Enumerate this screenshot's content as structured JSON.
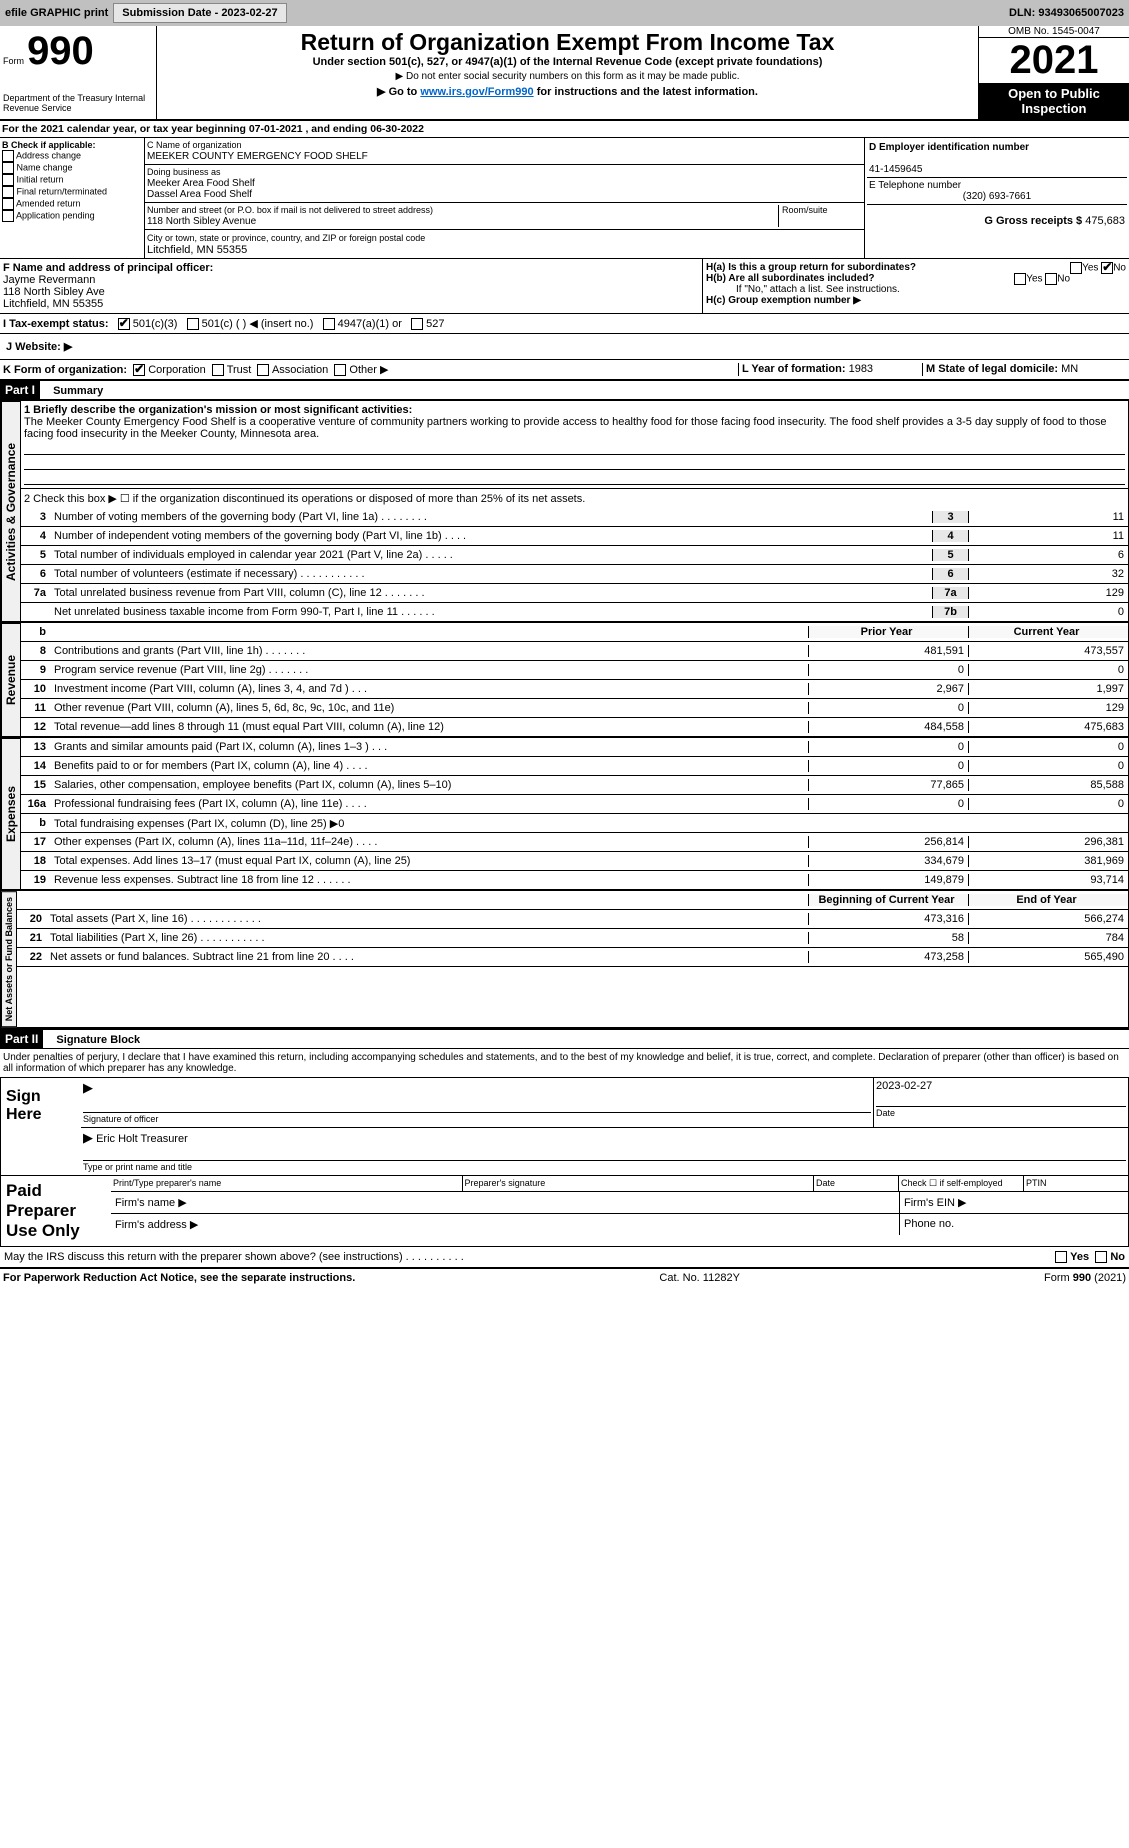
{
  "header_bar": {
    "efile_label": "efile GRAPHIC print",
    "submission_btn": "Submission Date - 2023-02-27",
    "dln": "DLN: 93493065007023"
  },
  "form_header": {
    "form_label": "Form",
    "form_no": "990",
    "title": "Return of Organization Exempt From Income Tax",
    "subtitle": "Under section 501(c), 527, or 4947(a)(1) of the Internal Revenue Code (except private foundations)",
    "note1": "▶ Do not enter social security numbers on this form as it may be made public.",
    "note2": "▶ Go to www.irs.gov/Form990 for instructions and the latest information.",
    "omb": "OMB No. 1545-0047",
    "year": "2021",
    "open": "Open to Public Inspection",
    "dept": "Department of the Treasury Internal Revenue Service"
  },
  "line_A": "For the 2021 calendar year, or tax year beginning 07-01-2021     , and ending 06-30-2022",
  "box_B": {
    "label": "B Check if applicable:",
    "opts": [
      "Address change",
      "Name change",
      "Initial return",
      "Final return/terminated",
      "Amended return",
      "Application pending"
    ]
  },
  "box_C": {
    "name_label": "C Name of organization",
    "name": "MEEKER COUNTY EMERGENCY FOOD SHELF",
    "dba_label": "Doing business as",
    "dba1": "Meeker Area Food Shelf",
    "dba2": "Dassel Area Food Shelf",
    "street_label": "Number and street (or P.O. box if mail is not delivered to street address)",
    "room_label": "Room/suite",
    "street": "118 North Sibley Avenue",
    "city_label": "City or town, state or province, country, and ZIP or foreign postal code",
    "city": "Litchfield, MN  55355"
  },
  "box_D": {
    "label": "D Employer identification number",
    "ein": "41-1459645"
  },
  "box_E": {
    "label": "E Telephone number",
    "tel": "(320) 693-7661"
  },
  "box_G": {
    "label": "G Gross receipts $",
    "val": "475,683"
  },
  "box_F": {
    "label": "F  Name and address of principal officer:",
    "name": "Jayme Revermann",
    "addr1": "118 North Sibley Ave",
    "addr2": "Litchfield, MN  55355"
  },
  "box_H": {
    "ha": "H(a)  Is this a group return for subordinates?",
    "hb": "H(b)  Are all subordinates included?",
    "hb_note": "If \"No,\" attach a list. See instructions.",
    "hc": "H(c)  Group exemption number ▶",
    "yes": "Yes",
    "no": "No"
  },
  "box_I": {
    "label": "I  Tax-exempt status:",
    "a": "501(c)(3)",
    "b": "501(c) (  ) ◀ (insert no.)",
    "c": "4947(a)(1) or",
    "d": "527"
  },
  "box_J": {
    "label": "J  Website: ▶"
  },
  "box_K": {
    "label": "K Form of organization:",
    "a": "Corporation",
    "b": "Trust",
    "c": "Association",
    "d": "Other ▶"
  },
  "box_L": {
    "label": "L Year of formation:",
    "val": "1983"
  },
  "box_M": {
    "label": "M State of legal domicile:",
    "val": "MN"
  },
  "part1": {
    "title": "Part I",
    "label": "Summary",
    "q1_label": "1  Briefly describe the organization's mission or most significant activities:",
    "q1": "The Meeker County Emergency Food Shelf is a cooperative venture of community partners working to provide access to healthy food for those facing food insecurity. The food shelf provides a 3-5 day supply of food to those facing food insecurity in the Meeker County, Minnesota area.",
    "q2": "2   Check this box ▶ ☐  if the organization discontinued its operations or disposed of more than 25% of its net assets.",
    "gov_lines": [
      {
        "n": "3",
        "t": "Number of voting members of the governing body (Part VI, line 1a)   .     .     .     .     .     .     .     .",
        "k": "3",
        "v": "11"
      },
      {
        "n": "4",
        "t": "Number of independent voting members of the governing body (Part VI, line 1b)  .     .     .     .",
        "k": "4",
        "v": "11"
      },
      {
        "n": "5",
        "t": "Total number of individuals employed in calendar year 2021 (Part V, line 2a)  .     .     .     .     .",
        "k": "5",
        "v": "6"
      },
      {
        "n": "6",
        "t": "Total number of volunteers (estimate if necessary)   .     .     .     .     .     .     .     .     .     .     .",
        "k": "6",
        "v": "32"
      },
      {
        "n": "7a",
        "t": "Total unrelated business revenue from Part VIII, column (C), line 12   .     .     .     .     .     .     .",
        "k": "7a",
        "v": "129"
      },
      {
        "n": "",
        "t": "Net unrelated business taxable income from Form 990-T, Part I, line 11   .     .     .     .     .     .",
        "k": "7b",
        "v": "0"
      }
    ],
    "py": "Prior Year",
    "cy": "Current Year",
    "rev_label": "Revenue",
    "exp_label": "Expenses",
    "na_label": "Net Assets or Fund Balances",
    "ag_label": "Activities & Governance",
    "rev": [
      {
        "n": "8",
        "t": "Contributions and grants (Part VIII, line 1h)    .     .     .     .     .     .     .",
        "p": "481,591",
        "c": "473,557"
      },
      {
        "n": "9",
        "t": "Program service revenue (Part VIII, line 2g)   .     .     .     .     .     .     .",
        "p": "0",
        "c": "0"
      },
      {
        "n": "10",
        "t": "Investment income (Part VIII, column (A), lines 3, 4, and 7d )   .     .     .",
        "p": "2,967",
        "c": "1,997"
      },
      {
        "n": "11",
        "t": "Other revenue (Part VIII, column (A), lines 5, 6d, 8c, 9c, 10c, and 11e)",
        "p": "0",
        "c": "129"
      },
      {
        "n": "12",
        "t": "Total revenue—add lines 8 through 11 (must equal Part VIII, column (A), line 12)",
        "p": "484,558",
        "c": "475,683"
      }
    ],
    "exp": [
      {
        "n": "13",
        "t": "Grants and similar amounts paid (Part IX, column (A), lines 1–3 )   .     .     .",
        "p": "0",
        "c": "0"
      },
      {
        "n": "14",
        "t": "Benefits paid to or for members (Part IX, column (A), line 4)   .     .     .     .",
        "p": "0",
        "c": "0"
      },
      {
        "n": "15",
        "t": "Salaries, other compensation, employee benefits (Part IX, column (A), lines 5–10)",
        "p": "77,865",
        "c": "85,588"
      },
      {
        "n": "16a",
        "t": "Professional fundraising fees (Part IX, column (A), line 11e)   .     .     .     .",
        "p": "0",
        "c": "0"
      },
      {
        "n": "b",
        "t": "Total fundraising expenses (Part IX, column (D), line 25) ▶0",
        "p": "shade",
        "c": "shade"
      },
      {
        "n": "17",
        "t": "Other expenses (Part IX, column (A), lines 11a–11d, 11f–24e)   .     .     .     .",
        "p": "256,814",
        "c": "296,381"
      },
      {
        "n": "18",
        "t": "Total expenses. Add lines 13–17 (must equal Part IX, column (A), line 25)",
        "p": "334,679",
        "c": "381,969"
      },
      {
        "n": "19",
        "t": "Revenue less expenses. Subtract line 18 from line 12   .     .     .     .     .     .",
        "p": "149,879",
        "c": "93,714"
      }
    ],
    "bcy": "Beginning of Current Year",
    "ecy": "End of Year",
    "na": [
      {
        "n": "20",
        "t": "Total assets (Part X, line 16)   .     .     .     .     .     .     .     .     .     .     .     .",
        "p": "473,316",
        "c": "566,274"
      },
      {
        "n": "21",
        "t": "Total liabilities (Part X, line 26)   .     .     .     .     .     .     .     .     .     .     .",
        "p": "58",
        "c": "784"
      },
      {
        "n": "22",
        "t": "Net assets or fund balances. Subtract line 21 from line 20   .     .     .     .",
        "p": "473,258",
        "c": "565,490"
      }
    ]
  },
  "part2": {
    "title": "Part II",
    "label": "Signature Block",
    "perjury": "Under penalties of perjury, I declare that I have examined this return, including accompanying schedules and statements, and to the best of my knowledge and belief, it is true, correct, and complete. Declaration of preparer (other than officer) is based on all information of which preparer has any knowledge.",
    "sign": "Sign Here",
    "sig_of": "Signature of officer",
    "date": "Date",
    "date_val": "2023-02-27",
    "name_title": "Eric Holt Treasurer",
    "name_title_lbl": "Type or print name and title",
    "paid": "Paid Preparer Use Only",
    "pp_name": "Print/Type preparer's name",
    "pp_sig": "Preparer's signature",
    "pp_date": "Date",
    "pp_chk": "Check ☐ if self-employed",
    "ptin": "PTIN",
    "firm_name": "Firm's name   ▶",
    "firm_ein": "Firm's EIN ▶",
    "firm_addr": "Firm's address ▶",
    "phone": "Phone no.",
    "discuss": "May the IRS discuss this return with the preparer shown above? (see instructions)  .     .     .     .     .     .     .     .     .     .",
    "paperwork": "For Paperwork Reduction Act Notice, see the separate instructions.",
    "cat": "Cat. No. 11282Y",
    "formno": "Form 990 (2021)"
  }
}
